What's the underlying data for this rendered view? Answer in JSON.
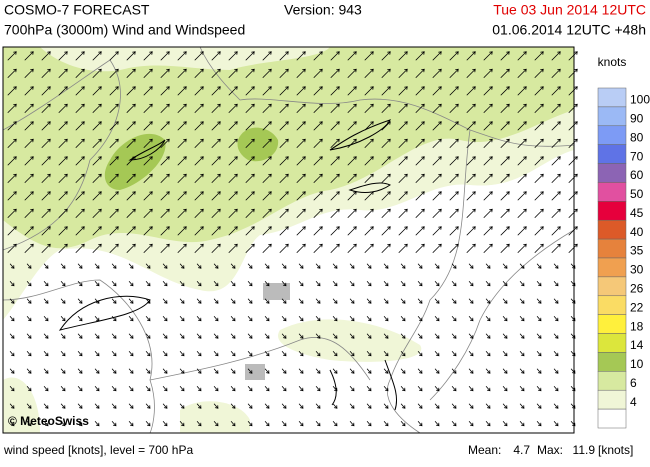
{
  "header": {
    "title": "COSMO-7 FORECAST",
    "subtitle": "700hPa (3000m) Wind and Windspeed",
    "version": "Version: 943",
    "valid_time": "Tue 03 Jun 2014 12UTC",
    "run": "01.06.2014 12UTC +48h"
  },
  "legend": {
    "unit": "knots",
    "levels": [
      {
        "value": 100,
        "color": "#b9cdf5"
      },
      {
        "value": 90,
        "color": "#9bb9f5"
      },
      {
        "value": 80,
        "color": "#7d9bf5"
      },
      {
        "value": 70,
        "color": "#5f73e6"
      },
      {
        "value": 60,
        "color": "#8c64b4"
      },
      {
        "value": 50,
        "color": "#e150a0"
      },
      {
        "value": 45,
        "color": "#e6003c"
      },
      {
        "value": 40,
        "color": "#dc5a28"
      },
      {
        "value": 35,
        "color": "#e6823c"
      },
      {
        "value": 30,
        "color": "#f0a050"
      },
      {
        "value": 26,
        "color": "#f5c878"
      },
      {
        "value": 22,
        "color": "#fadc64"
      },
      {
        "value": 18,
        "color": "#fff03c"
      },
      {
        "value": 14,
        "color": "#dce63c"
      },
      {
        "value": 10,
        "color": "#a5c855"
      },
      {
        "value": 6,
        "color": "#d7e9a0"
      },
      {
        "value": 4,
        "color": "#f0f6d7"
      }
    ]
  },
  "map": {
    "credit": "© MeteoSwiss"
  },
  "footer": {
    "caption": "wind speed [knots], level = 700 hPa",
    "mean_label": "Mean:",
    "mean": 4.7,
    "max_label": "Max:",
    "max": 11.9,
    "unit": "[knots]"
  }
}
